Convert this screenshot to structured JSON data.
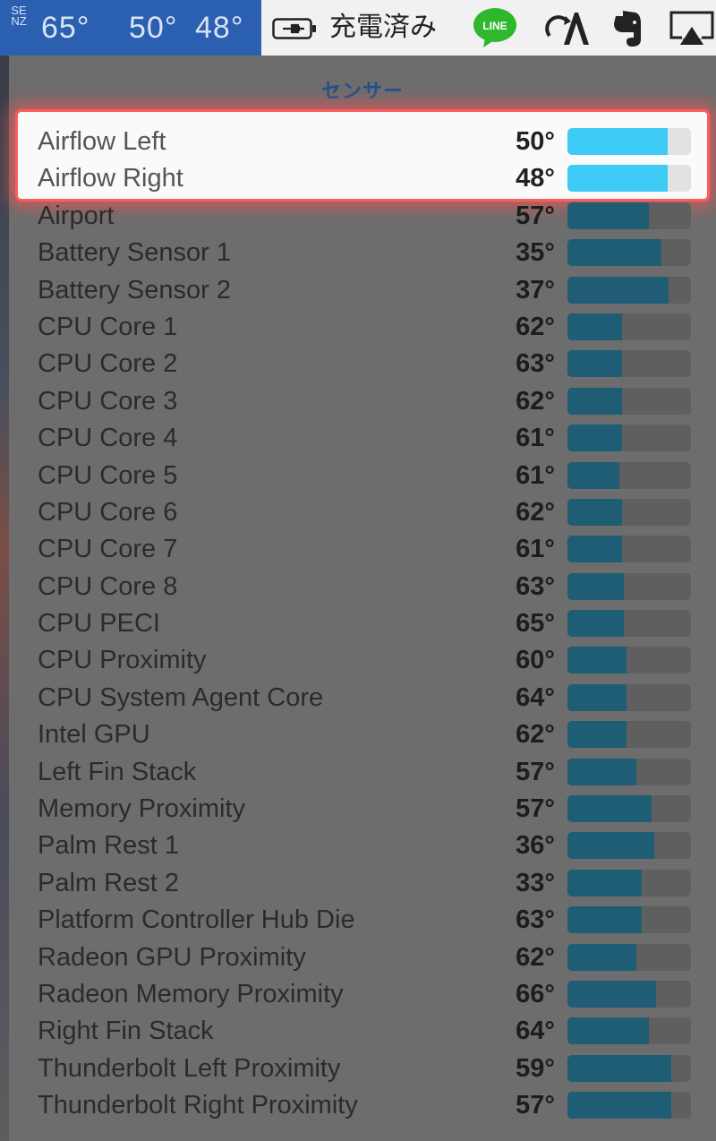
{
  "menubar": {
    "sensor_brand": "SENZ",
    "temps": [
      "65°",
      "50°",
      "48°"
    ],
    "battery_status": "充電済み",
    "line_label": "LINE"
  },
  "menu": {
    "heading": "センサー",
    "sensors": [
      {
        "name": "Airflow Left",
        "value": "50°",
        "level": 0.81,
        "highlighted": true
      },
      {
        "name": "Airflow Right",
        "value": "48°",
        "level": 0.81,
        "highlighted": true
      },
      {
        "name": "Airport",
        "value": "57°",
        "level": 0.66,
        "highlighted": false
      },
      {
        "name": "Battery Sensor 1",
        "value": "35°",
        "level": 0.76,
        "highlighted": false
      },
      {
        "name": "Battery Sensor 2",
        "value": "37°",
        "level": 0.82,
        "highlighted": false
      },
      {
        "name": "CPU Core 1",
        "value": "62°",
        "level": 0.44,
        "highlighted": false
      },
      {
        "name": "CPU Core 2",
        "value": "63°",
        "level": 0.44,
        "highlighted": false
      },
      {
        "name": "CPU Core 3",
        "value": "62°",
        "level": 0.44,
        "highlighted": false
      },
      {
        "name": "CPU Core 4",
        "value": "61°",
        "level": 0.44,
        "highlighted": false
      },
      {
        "name": "CPU Core 5",
        "value": "61°",
        "level": 0.42,
        "highlighted": false
      },
      {
        "name": "CPU Core 6",
        "value": "62°",
        "level": 0.44,
        "highlighted": false
      },
      {
        "name": "CPU Core 7",
        "value": "61°",
        "level": 0.44,
        "highlighted": false
      },
      {
        "name": "CPU Core 8",
        "value": "63°",
        "level": 0.46,
        "highlighted": false
      },
      {
        "name": "CPU PECI",
        "value": "65°",
        "level": 0.46,
        "highlighted": false
      },
      {
        "name": "CPU Proximity",
        "value": "60°",
        "level": 0.48,
        "highlighted": false
      },
      {
        "name": "CPU System Agent Core",
        "value": "64°",
        "level": 0.48,
        "highlighted": false
      },
      {
        "name": "Intel GPU",
        "value": "62°",
        "level": 0.48,
        "highlighted": false
      },
      {
        "name": "Left Fin Stack",
        "value": "57°",
        "level": 0.56,
        "highlighted": false
      },
      {
        "name": "Memory Proximity",
        "value": "57°",
        "level": 0.68,
        "highlighted": false
      },
      {
        "name": "Palm Rest 1",
        "value": "36°",
        "level": 0.7,
        "highlighted": false
      },
      {
        "name": "Palm Rest 2",
        "value": "33°",
        "level": 0.6,
        "highlighted": false
      },
      {
        "name": "Platform Controller Hub Die",
        "value": "63°",
        "level": 0.6,
        "highlighted": false
      },
      {
        "name": "Radeon GPU Proximity",
        "value": "62°",
        "level": 0.56,
        "highlighted": false
      },
      {
        "name": "Radeon Memory Proximity",
        "value": "66°",
        "level": 0.72,
        "highlighted": false
      },
      {
        "name": "Right Fin Stack",
        "value": "64°",
        "level": 0.66,
        "highlighted": false
      },
      {
        "name": "Thunderbolt Left Proximity",
        "value": "59°",
        "level": 0.84,
        "highlighted": false
      },
      {
        "name": "Thunderbolt Right Proximity",
        "value": "57°",
        "level": 0.84,
        "highlighted": false
      }
    ]
  },
  "colors": {
    "menubar_stats_bg": "#2b5fb0",
    "menu_bg": "#6d6d6d",
    "bar_fill": "#1e5d73",
    "bar_fill_highlight": "#3ecbf5",
    "highlight_glow": "#ff5050",
    "line_green": "#2fb82c"
  },
  "icons": [
    "battery-plug-icon",
    "line-app-icon",
    "sync-a-icon",
    "evernote-icon",
    "airplay-icon"
  ]
}
